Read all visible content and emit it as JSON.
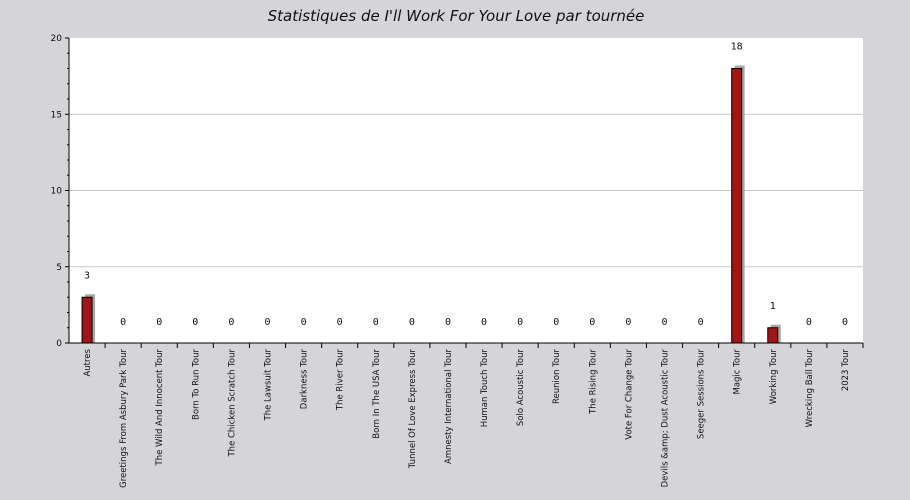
{
  "chart_data": {
    "type": "bar",
    "title": "Statistiques de I'll Work For Your Love par tournée",
    "xlabel": "",
    "ylabel": "",
    "ylim": [
      0,
      20
    ],
    "yticks": [
      0,
      5,
      10,
      15,
      20
    ],
    "grid": true,
    "categories": [
      "Autres",
      "Greetings From Asbury Park Tour",
      "The Wild And Innocent Tour",
      "Born To Run Tour",
      "The Chicken Scratch Tour",
      "The Lawsuit Tour",
      "Darkness Tour",
      "The River Tour",
      "Born In The USA Tour",
      "Tunnel Of Love Express Tour",
      "Amnesty International Tour",
      "Human Touch Tour",
      "Solo Acoustic Tour",
      "Reunion Tour",
      "The Rising Tour",
      "Vote For Change Tour",
      "Devils &amp; Dust Acoustic Tour",
      "Seeger Sessions Tour",
      "Magic Tour",
      "Working Tour",
      "Wrecking Ball Tour",
      "2023 Tour"
    ],
    "values": [
      3,
      0,
      0,
      0,
      0,
      0,
      0,
      0,
      0,
      0,
      0,
      0,
      0,
      0,
      0,
      0,
      0,
      0,
      18,
      1,
      0,
      0
    ],
    "colors": {
      "bar": "#a01616",
      "shadow": "#a8a8a8",
      "plot_bg": "#ffffff",
      "page_bg": "#d5d4d9",
      "grid": "#c8c8c8"
    }
  }
}
